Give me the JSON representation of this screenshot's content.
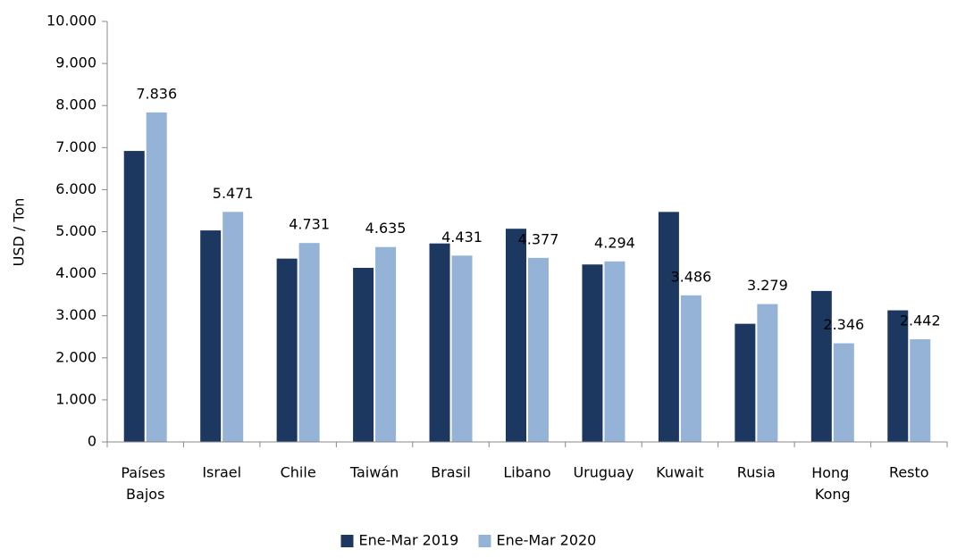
{
  "chart_data": {
    "type": "bar",
    "y_label": "USD / Ton",
    "categories": [
      "Países Bajos",
      "Israel",
      "Chile",
      "Taiwán",
      "Brasil",
      "Libano",
      "Uruguay",
      "Kuwait",
      "Rusia",
      "Hong Kong",
      "Resto"
    ],
    "series": [
      {
        "name": "Ene-Mar 2019",
        "color": "#1d3860",
        "values": [
          6920,
          5030,
          4360,
          4140,
          4720,
          5070,
          4220,
          5470,
          2810,
          3590,
          3130
        ]
      },
      {
        "name": "Ene-Mar 2020",
        "color": "#95b3d7",
        "values": [
          7836,
          5471,
          4731,
          4635,
          4431,
          4377,
          4294,
          3486,
          3279,
          2346,
          2442
        ],
        "value_labels": [
          "7.836",
          "5.471",
          "4.731",
          "4.635",
          "4.431",
          "4.377",
          "4.294",
          "3.486",
          "3.279",
          "2.346",
          "2.442"
        ]
      }
    ],
    "ylim": [
      0,
      10000
    ],
    "yticks": [
      0,
      {
        "value": 1000,
        "label": "1.000"
      },
      {
        "value": 2000,
        "label": "2.000"
      },
      {
        "value": 3000,
        "label": "3.000"
      },
      {
        "value": 4000,
        "label": "4.000"
      },
      {
        "value": 5000,
        "label": "5.000"
      },
      {
        "value": 6000,
        "label": "6.000"
      },
      {
        "value": 7000,
        "label": "7.000"
      },
      {
        "value": 8000,
        "label": "8.000"
      },
      {
        "value": 9000,
        "label": "9.000"
      },
      {
        "value": 10000,
        "label": "10.000"
      }
    ],
    "legend": "bottom"
  }
}
